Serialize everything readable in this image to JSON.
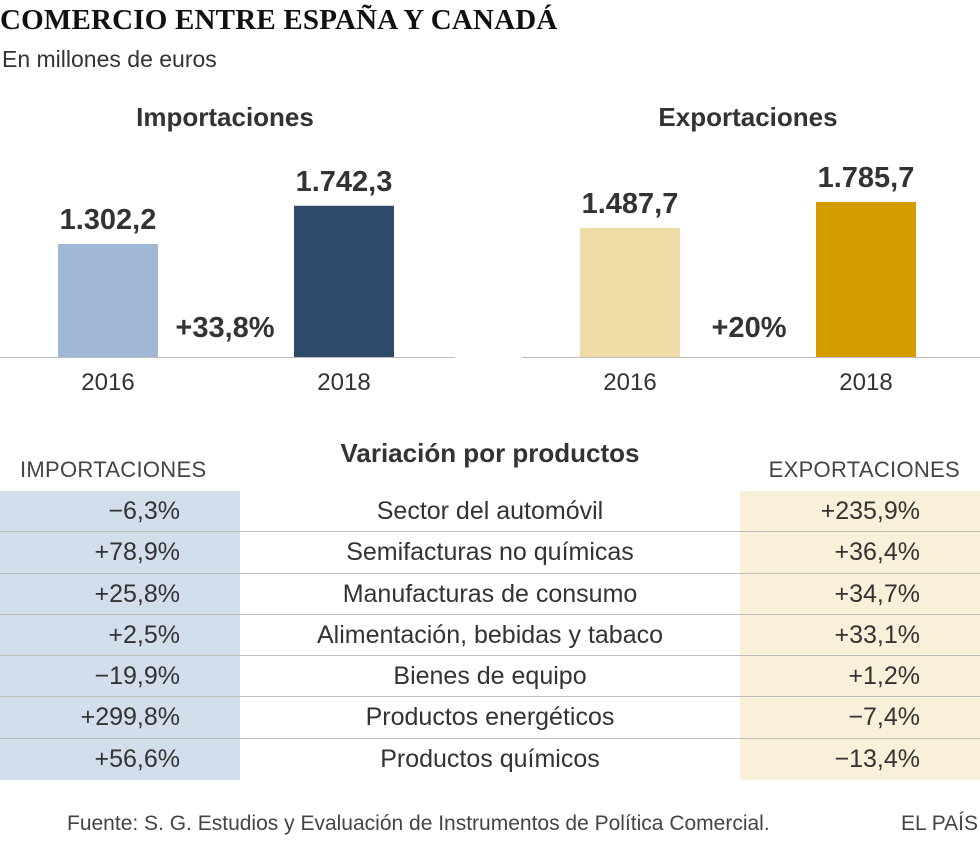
{
  "title": "COMERCIO ENTRE ESPAÑA Y CANADÁ",
  "subtitle": "En millones de euros",
  "chart_data": [
    {
      "type": "bar",
      "title": "Importaciones",
      "categories": [
        "2016",
        "2018"
      ],
      "values": [
        1302.2,
        1742.3
      ],
      "value_labels": [
        "1.302,2",
        "1.742,3"
      ],
      "change_label": "+33,8%",
      "colors": [
        "#9fb8d6",
        "#2f4a6b"
      ],
      "ylim": [
        0,
        1785.7
      ]
    },
    {
      "type": "bar",
      "title": "Exportaciones",
      "categories": [
        "2016",
        "2018"
      ],
      "values": [
        1487.7,
        1785.7
      ],
      "value_labels": [
        "1.487,7",
        "1.785,7"
      ],
      "change_label": "+20%",
      "colors": [
        "#f0dca6",
        "#d69d00"
      ],
      "ylim": [
        0,
        1785.7
      ]
    }
  ],
  "table": {
    "title": "Variación por productos",
    "imp_header": "IMPORTACIONES",
    "exp_header": "EXPORTACIONES",
    "imp_color": "#d3deec",
    "exp_color": "#f8f0d8",
    "rows": [
      {
        "product": "Sector del automóvil",
        "imp": "−6,3%",
        "exp": "+235,9%"
      },
      {
        "product": "Semifacturas no químicas",
        "imp": "+78,9%",
        "exp": "+36,4%"
      },
      {
        "product": "Manufacturas de consumo",
        "imp": "+25,8%",
        "exp": "+34,7%"
      },
      {
        "product": "Alimentación, bebidas y tabaco",
        "imp": "+2,5%",
        "exp": "+33,1%"
      },
      {
        "product": "Bienes de equipo",
        "imp": "−19,9%",
        "exp": "+1,2%"
      },
      {
        "product": "Productos energéticos",
        "imp": "+299,8%",
        "exp": "−7,4%"
      },
      {
        "product": "Productos químicos",
        "imp": "+56,6%",
        "exp": "−13,4%"
      }
    ]
  },
  "footer": {
    "source": "Fuente: S. G. Estudios y Evaluación de Instrumentos de Política Comercial.",
    "brand": "EL PAÍS"
  }
}
